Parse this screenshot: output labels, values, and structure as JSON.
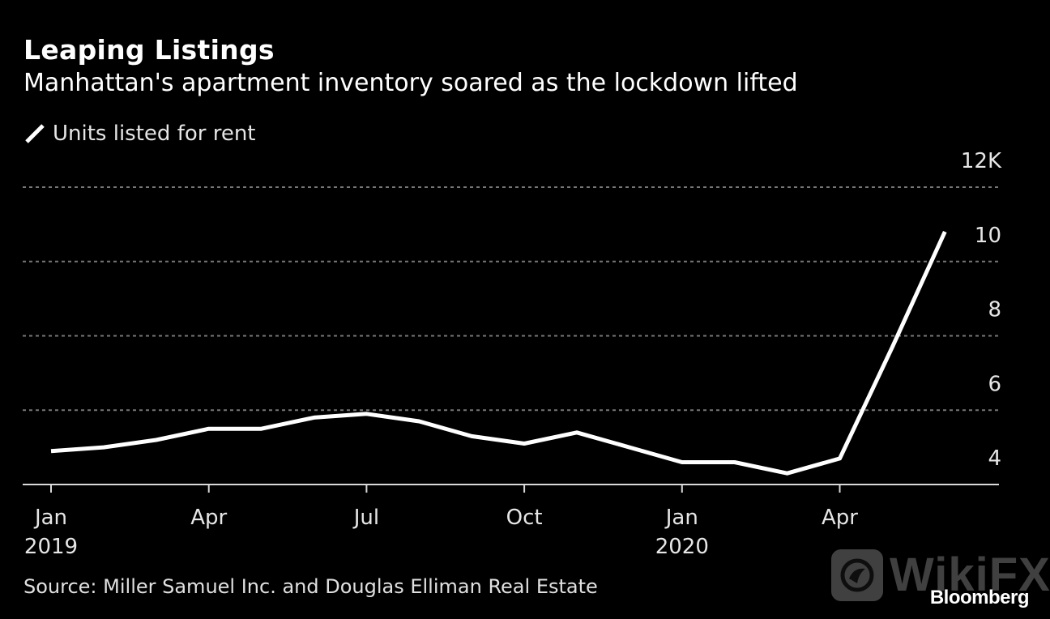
{
  "header": {
    "title": "Leaping Listings",
    "subtitle": "Manhattan's apartment inventory soared as the lockdown lifted"
  },
  "legend": {
    "icon": "line-swatch-icon",
    "label": "Units listed for rent"
  },
  "footer": {
    "source": "Source: Miller Samuel Inc. and Douglas Elliman Real Estate",
    "brand": "Bloomberg",
    "watermark": "WikiFX"
  },
  "colors": {
    "background": "#000000",
    "line": "#ffffff",
    "grid": "#777777",
    "axis": "#d9d9d9",
    "text": "#e6e6e6"
  },
  "chart_data": {
    "type": "line",
    "title": "Leaping Listings",
    "subtitle": "Manhattan's apartment inventory soared as the lockdown lifted",
    "xlabel": "",
    "ylabel": "Units listed for rent (thousands)",
    "ylim": [
      4,
      12
    ],
    "yticks": [
      4,
      6,
      8,
      10,
      12
    ],
    "ytick_labels": [
      "4",
      "6",
      "8",
      "10",
      "12K"
    ],
    "grid": true,
    "legend_position": "top-left",
    "x": [
      "2019-01",
      "2019-02",
      "2019-03",
      "2019-04",
      "2019-05",
      "2019-06",
      "2019-07",
      "2019-08",
      "2019-09",
      "2019-10",
      "2019-11",
      "2019-12",
      "2020-01",
      "2020-02",
      "2020-03",
      "2020-04",
      "2020-05",
      "2020-06"
    ],
    "xticks": [
      {
        "index": 0,
        "label": "Jan",
        "sublabel": "2019"
      },
      {
        "index": 3,
        "label": "Apr",
        "sublabel": ""
      },
      {
        "index": 6,
        "label": "Jul",
        "sublabel": ""
      },
      {
        "index": 9,
        "label": "Oct",
        "sublabel": ""
      },
      {
        "index": 12,
        "label": "Jan",
        "sublabel": "2020"
      },
      {
        "index": 15,
        "label": "Apr",
        "sublabel": ""
      }
    ],
    "series": [
      {
        "name": "Units listed for rent",
        "values": [
          4.9,
          5.0,
          5.2,
          5.5,
          5.5,
          5.8,
          5.9,
          5.7,
          5.3,
          5.1,
          5.4,
          5.0,
          4.6,
          4.6,
          4.3,
          4.7,
          7.7,
          10.8
        ]
      }
    ]
  }
}
